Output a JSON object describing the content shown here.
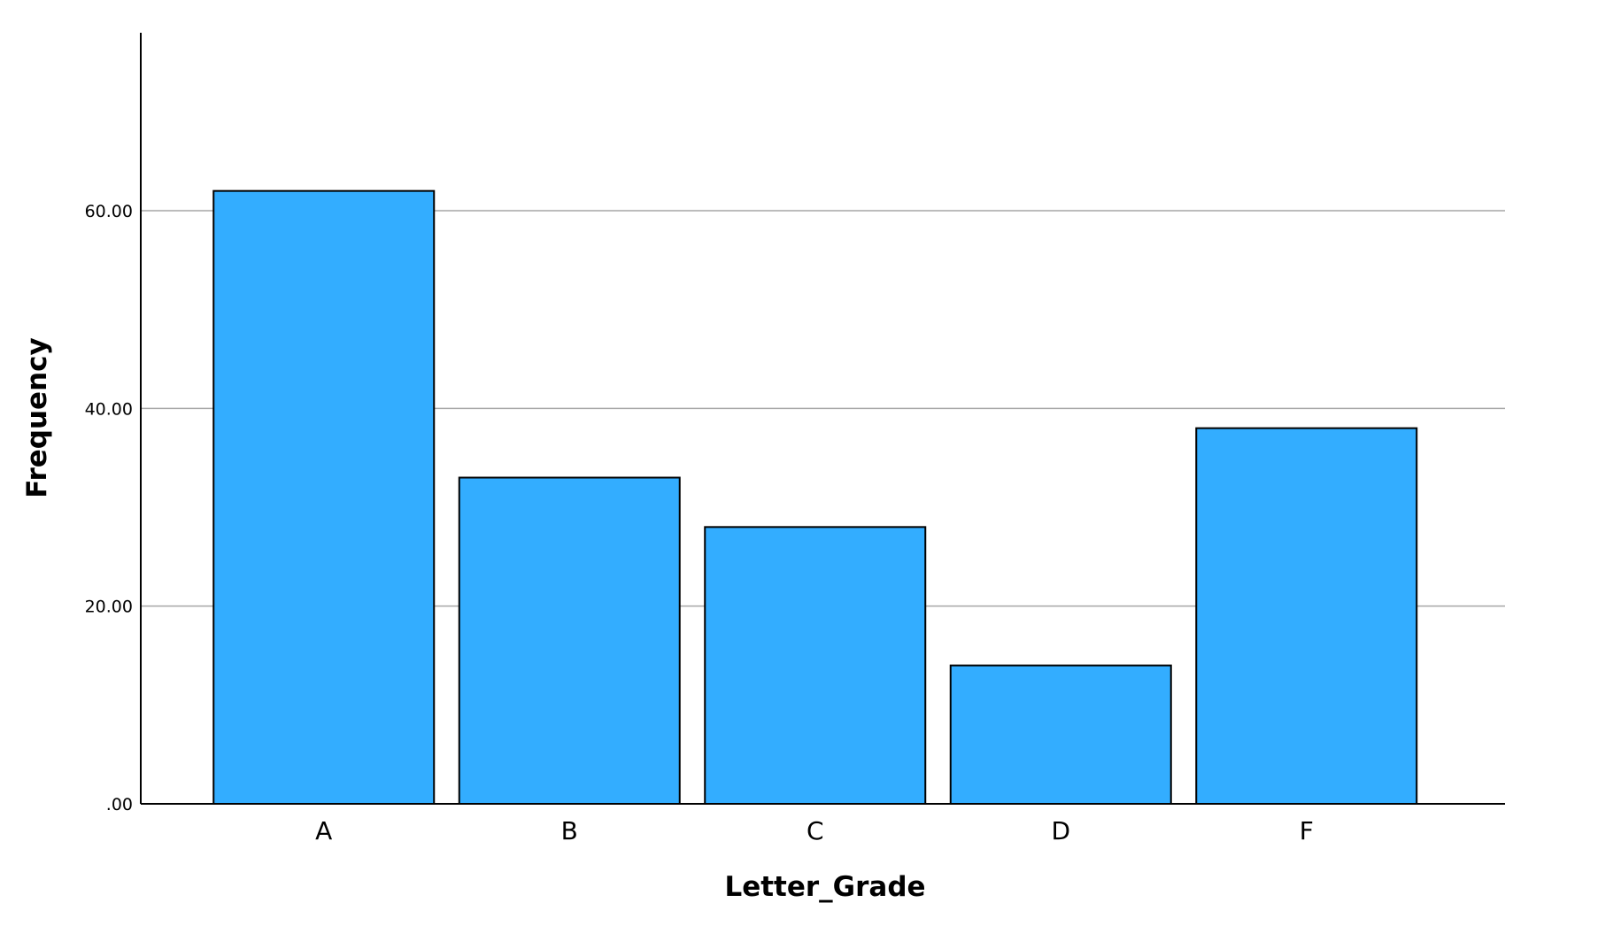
{
  "chart_data": {
    "type": "bar",
    "categories": [
      "A",
      "B",
      "C",
      "D",
      "F"
    ],
    "values": [
      62,
      33,
      28,
      14,
      38
    ],
    "xlabel": "Letter_Grade",
    "ylabel": "Frequency",
    "ylim": [
      0,
      78
    ],
    "yticks": [
      0,
      20,
      40,
      60
    ],
    "ytick_labels": [
      ".00",
      "20.00",
      "40.00",
      "60.00"
    ],
    "grid": true,
    "bar_color": "#33adff",
    "bar_edge_color": "#000000",
    "gridline_color": "#a6a6a6"
  }
}
